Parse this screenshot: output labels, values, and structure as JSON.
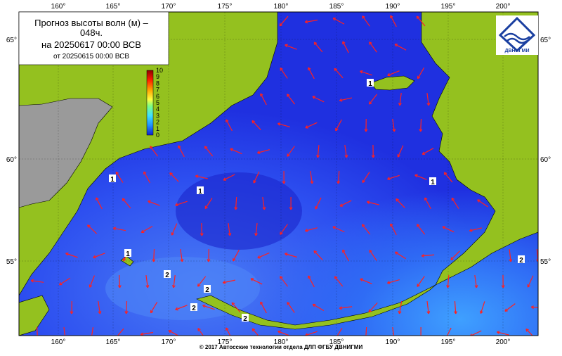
{
  "header": {
    "title_line1": "Прогноз высоты волн (м) –",
    "title_line2": "048ч.",
    "valid": "на 20250617 00:00 ВСВ",
    "issued": "от 20250615 00:00 ВСВ"
  },
  "colorbar": {
    "labels": [
      "10",
      "9",
      "8",
      "7",
      "6",
      "5",
      "4",
      "3",
      "2",
      "1",
      "0"
    ]
  },
  "lon_labels": [
    "160°",
    "165°",
    "170°",
    "175°",
    "180°",
    "185°",
    "190°",
    "195°",
    "200°"
  ],
  "lat_labels": [
    "65°",
    "60°",
    "55°"
  ],
  "contour_labels": [
    "1",
    "1",
    "1",
    "1",
    "1",
    "2",
    "2",
    "2",
    "2",
    "2"
  ],
  "logo": {
    "text": "ДВНИГМИ"
  },
  "footer": "© 2017 Автосские технологии отдела ДЛП ФГБУ ДВНИГМИ"
}
